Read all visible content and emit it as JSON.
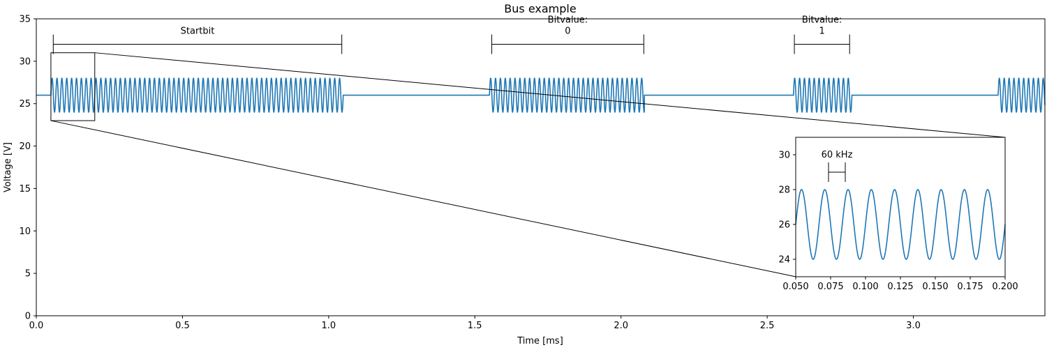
{
  "chart_data": {
    "type": "line",
    "title": "Bus example",
    "xlabel": "Time [ms]",
    "ylabel": "Voltage [V]",
    "xlim": [
      0,
      3.45
    ],
    "ylim": [
      0,
      35
    ],
    "xticks": [
      "0.0",
      "0.5",
      "1.0",
      "1.5",
      "2.0",
      "2.5",
      "3.0"
    ],
    "yticks": [
      "0",
      "5",
      "10",
      "15",
      "20",
      "25",
      "30",
      "35"
    ],
    "grid": false,
    "colors": {
      "line": "#1f77b4",
      "annotation": "#000000"
    },
    "series": [
      {
        "baseline_v": 26,
        "amplitude_v": 2,
        "carrier_frequency_khz": 60,
        "bursts_ms": [
          [
            0.05,
            1.05
          ],
          [
            1.55,
            2.08
          ],
          [
            2.59,
            2.79
          ],
          [
            3.29,
            3.45
          ]
        ]
      }
    ],
    "annotations": [
      {
        "label_lines": [
          "Startbit"
        ],
        "x_start": 0.058,
        "x_end": 1.045,
        "y": 32
      },
      {
        "label_lines": [
          "Bitvalue:",
          "0"
        ],
        "x_start": 1.558,
        "x_end": 2.078,
        "y": 32
      },
      {
        "label_lines": [
          "Bitvalue:",
          "1"
        ],
        "x_start": 2.593,
        "x_end": 2.782,
        "y": 32
      }
    ],
    "zoom_box": {
      "xlim": [
        0.05,
        0.2
      ],
      "ylim": [
        23,
        31
      ]
    },
    "inset": {
      "xlim": [
        0.05,
        0.2
      ],
      "ylim": [
        23,
        31
      ],
      "xticks": [
        "0.050",
        "0.075",
        "0.100",
        "0.125",
        "0.150",
        "0.175",
        "0.200"
      ],
      "yticks": [
        "24",
        "26",
        "28",
        "30"
      ],
      "annotation": {
        "label": "60 kHz",
        "x_start": 0.0735,
        "x_end": 0.0855,
        "y": 29.0
      }
    }
  }
}
